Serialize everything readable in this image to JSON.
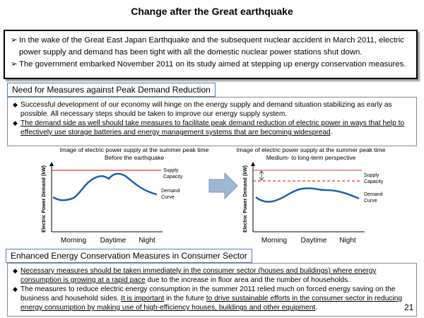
{
  "title": "Change after the Great earthquake",
  "intro": {
    "bullets": [
      "In the wake of the Great East Japan Earthquake and the subsequent nuclear accident in March 2011, electric power supply and demand has been tight with all the domestic nuclear power stations shut down.",
      "The government embarked  November 2011 on its study aimed at stepping up energy conservation measures."
    ]
  },
  "section1": {
    "heading": "Need for Measures against Peak Demand Reduction",
    "bullets": [
      {
        "parts": [
          {
            "text": "Successful development of our economy will hinge on the energy supply and demand situation stabilizing as early as possible. All necessary steps should be taken to improve our energy supply system.",
            "underlined": false
          }
        ]
      },
      {
        "parts": [
          {
            "text": "The demand side as well should take measures to facilitate peak demand reduction of electric power in ways that help to effectively use storage batteries and energy management systems that are becoming widespread",
            "underlined": true
          },
          {
            "text": ".",
            "underlined": false
          }
        ]
      }
    ]
  },
  "diagrams": [
    {
      "caption": "Image of electric power supply at the summer peak time",
      "subcaption": "Before the earthquake",
      "y_label": "Electric Power Demand (kW)",
      "supply_label": "Supply Capacity",
      "demand_label": "Demand Curve",
      "x_labels": [
        "Morning",
        "Daytime",
        "Night"
      ]
    },
    {
      "caption": "Image of electric power supply at the summer peak time",
      "subcaption": "Medium- to long-term perspective",
      "y_label": "Electric Power Demand (kW)",
      "supply_label": "Supply Capacity",
      "demand_label": "Demand Curve",
      "x_labels": [
        "Morning",
        "Daytime",
        "Night"
      ]
    }
  ],
  "section2": {
    "heading": "Enhanced Energy Conservation Measures in Consumer Sector",
    "bullets": [
      {
        "parts": [
          {
            "text": "Necessary measures should be taken immediately in the consumer sector (houses and buildings) where energy consumption is growing at a rapid pace",
            "underlined": true
          },
          {
            "text": " due to the increase in floor area and the number of households.",
            "underlined": false
          }
        ]
      },
      {
        "parts": [
          {
            "text": "The measures to reduce electric energy consumption in the summer 2011 relied much on forced energy saving on the business and household sides. ",
            "underlined": false
          },
          {
            "text": "It is important",
            "underlined": true
          },
          {
            "text": " in the future ",
            "underlined": false
          },
          {
            "text": "to drive sustainable efforts in the consumer sector in reducing energy consumption by making use of high-efficiency houses, buildings and other equipment",
            "underlined": true
          },
          {
            "text": ".",
            "underlined": false
          }
        ]
      }
    ]
  },
  "page_number": "21"
}
